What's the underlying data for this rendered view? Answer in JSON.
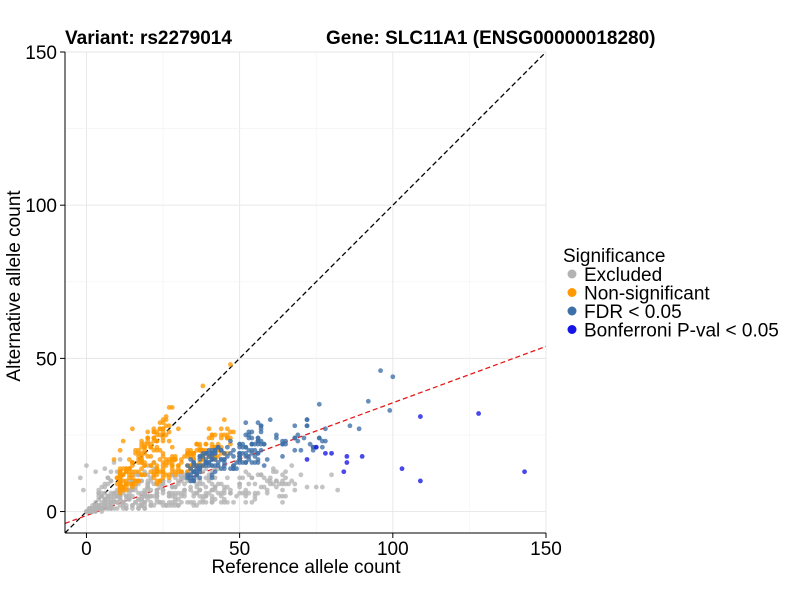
{
  "chart_data": {
    "type": "scatter",
    "title_left": "Variant: rs2279014",
    "title_right": "Gene: SLC11A1 (ENSG00000018280)",
    "xlabel": "Reference allele count",
    "ylabel": "Alternative allele count",
    "xlim": [
      -7,
      150
    ],
    "ylim": [
      -7,
      150
    ],
    "xticks": [
      0,
      50,
      100,
      150
    ],
    "yticks": [
      0,
      50,
      100,
      150
    ],
    "grid": true,
    "legend_position": "right",
    "legend_title": "Significance",
    "reference_lines": [
      {
        "name": "identity-line",
        "slope": 1,
        "intercept": 0,
        "color": "#000000",
        "dash": "dashed"
      },
      {
        "name": "fit-line",
        "slope": 0.368,
        "intercept": -1.3,
        "color": "#e41a1c",
        "dash": "dashed"
      }
    ],
    "series": [
      {
        "name": "Excluded",
        "color": "#b3b3b3",
        "generated": {
          "seed": 11,
          "clusters": [
            {
              "n": 170,
              "x": [
                0,
                22
              ],
              "r": [
                0.05,
                0.75
              ]
            },
            {
              "n": 150,
              "x": [
                18,
                42
              ],
              "r": [
                0.05,
                0.42
              ]
            },
            {
              "n": 70,
              "x": [
                40,
                68
              ],
              "r": [
                0.04,
                0.24
              ]
            },
            {
              "n": 40,
              "x": [
                0,
                12
              ],
              "r": [
                0.2,
                1.8
              ]
            }
          ]
        },
        "points": [
          [
            75,
            8
          ],
          [
            77,
            8
          ],
          [
            72,
            8
          ],
          [
            82,
            7
          ],
          [
            60,
            11
          ],
          [
            65,
            11
          ],
          [
            57,
            8
          ],
          [
            58,
            11
          ],
          [
            46,
            8
          ],
          [
            50,
            9
          ],
          [
            45,
            3
          ],
          [
            38,
            4
          ],
          [
            43,
            14
          ],
          [
            36,
            13
          ],
          [
            53,
            6
          ],
          [
            62,
            10
          ],
          [
            70,
            12
          ],
          [
            68,
            9
          ],
          [
            80,
            12
          ],
          [
            44,
            6
          ],
          [
            46,
            11
          ],
          [
            29,
            2
          ],
          [
            52,
            13
          ],
          [
            0,
            15
          ],
          [
            3,
            13
          ],
          [
            6,
            14
          ],
          [
            -2,
            11
          ],
          [
            -1,
            7
          ]
        ]
      },
      {
        "name": "Non-significant",
        "color": "#ff9900",
        "generated": {
          "seed": 23,
          "clusters": [
            {
              "n": 160,
              "x": [
                10,
                28
              ],
              "r": [
                0.55,
                1.25
              ]
            },
            {
              "n": 130,
              "x": [
                22,
                48
              ],
              "r": [
                0.4,
                0.62
              ]
            }
          ]
        },
        "points": [
          [
            47,
            48
          ],
          [
            38,
            41
          ],
          [
            15,
            27
          ],
          [
            25,
            27
          ],
          [
            30,
            27
          ],
          [
            40,
            27
          ],
          [
            45,
            30
          ],
          [
            9,
            17
          ],
          [
            12,
            23
          ],
          [
            11,
            20
          ],
          [
            44,
            25
          ],
          [
            20,
            26
          ],
          [
            18,
            23
          ]
        ]
      },
      {
        "name": "FDR < 0.05",
        "color": "#3d6fa8",
        "generated": {
          "seed": 37,
          "clusters": [
            {
              "n": 130,
              "x": [
                33,
                58
              ],
              "r": [
                0.28,
                0.5
              ]
            },
            {
              "n": 45,
              "x": [
                48,
                78
              ],
              "r": [
                0.26,
                0.42
              ]
            }
          ]
        },
        "points": [
          [
            96,
            46
          ],
          [
            100,
            44
          ],
          [
            76,
            35
          ],
          [
            92,
            36
          ],
          [
            99,
            33
          ],
          [
            86,
            28
          ],
          [
            89,
            27
          ],
          [
            78,
            27
          ],
          [
            72,
            28
          ],
          [
            78,
            23
          ],
          [
            68,
            24
          ],
          [
            60,
            30
          ],
          [
            64,
            22
          ],
          [
            70,
            20
          ],
          [
            58,
            22
          ],
          [
            52,
            29
          ],
          [
            56,
            29
          ]
        ]
      },
      {
        "name": "Bonferroni P-val < 0.05",
        "color": "#1414e6",
        "points": [
          [
            128,
            32
          ],
          [
            109,
            31
          ],
          [
            143,
            13
          ],
          [
            109,
            10
          ],
          [
            103,
            14
          ],
          [
            90,
            18
          ],
          [
            85,
            18
          ],
          [
            84,
            13
          ],
          [
            78,
            19
          ],
          [
            80,
            19
          ],
          [
            72,
            17
          ],
          [
            75,
            21
          ],
          [
            85,
            16
          ]
        ]
      }
    ]
  }
}
